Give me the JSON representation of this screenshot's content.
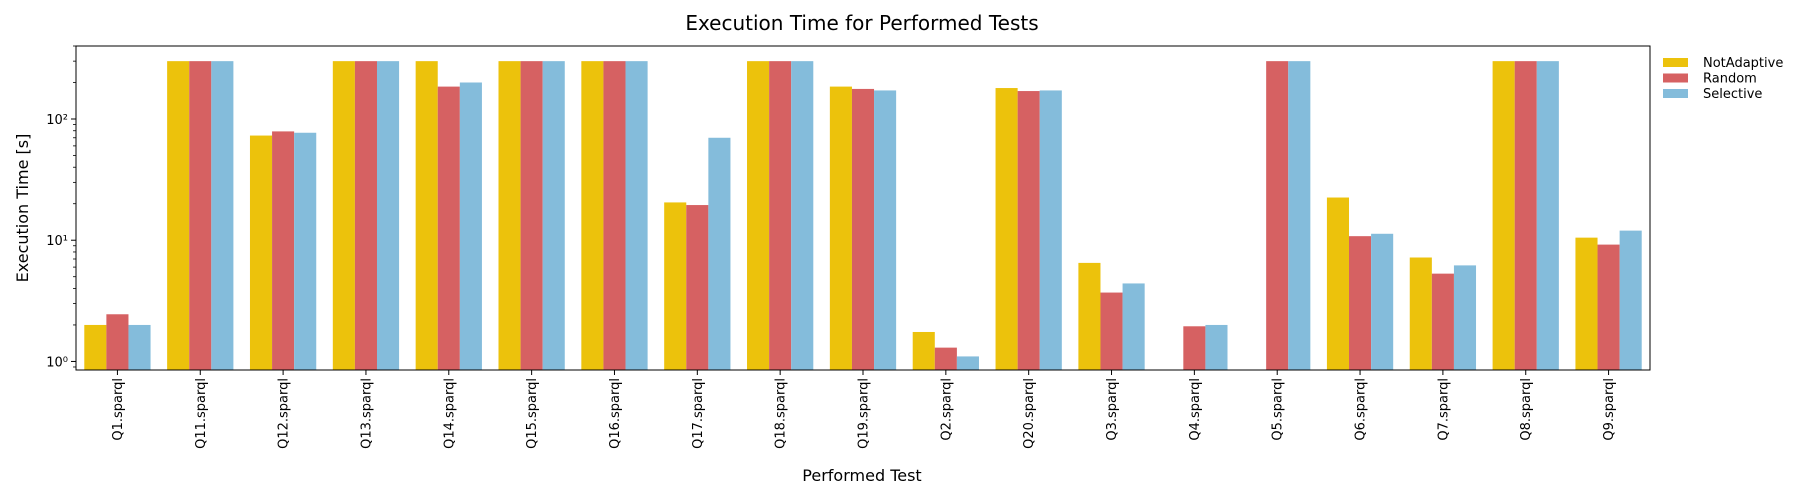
{
  "chart_data": {
    "type": "bar",
    "title": "Execution Time for Performed Tests",
    "xlabel": "Performed Test",
    "ylabel": "Execution Time [s]",
    "yscale": "log",
    "ylim": [
      0.85,
      400
    ],
    "y_ticks": [
      1,
      10,
      100
    ],
    "y_tick_labels": [
      "10⁰",
      "10¹",
      "10²"
    ],
    "legend_position": "outside-top-right",
    "categories": [
      "Q1.sparql",
      "Q11.sparql",
      "Q12.sparql",
      "Q13.sparql",
      "Q14.sparql",
      "Q15.sparql",
      "Q16.sparql",
      "Q17.sparql",
      "Q18.sparql",
      "Q19.sparql",
      "Q2.sparql",
      "Q20.sparql",
      "Q3.sparql",
      "Q4.sparql",
      "Q5.sparql",
      "Q6.sparql",
      "Q7.sparql",
      "Q8.sparql",
      "Q9.sparql"
    ],
    "series": [
      {
        "name": "NotAdaptive",
        "color": "#ecc20c",
        "values": [
          2.0,
          300,
          73,
          300,
          300,
          300,
          300,
          20.5,
          300,
          185,
          1.75,
          180,
          6.5,
          null,
          null,
          22.5,
          7.2,
          300,
          10.5
        ]
      },
      {
        "name": "Random",
        "color": "#d66162",
        "values": [
          2.45,
          300,
          79,
          300,
          185,
          300,
          300,
          19.5,
          300,
          177,
          1.3,
          170,
          3.7,
          1.95,
          300,
          10.8,
          5.3,
          300,
          9.2
        ]
      },
      {
        "name": "Selective",
        "color": "#84bcdb",
        "values": [
          2.0,
          300,
          77,
          300,
          200,
          300,
          300,
          70,
          300,
          172,
          1.1,
          172,
          4.4,
          2.0,
          300,
          11.3,
          6.2,
          300,
          12.0
        ]
      }
    ]
  }
}
